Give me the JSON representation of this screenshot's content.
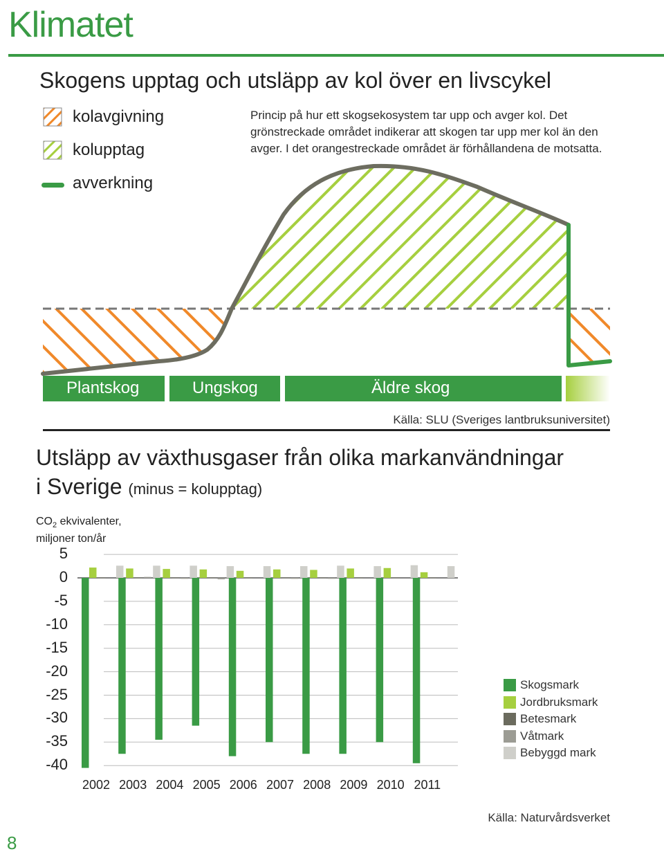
{
  "header": {
    "title": "Klimatet"
  },
  "section1": {
    "title": "Skogens upptag och utsläpp av kol över en livscykel",
    "legend": [
      {
        "label": "kolavgivning",
        "pattern": "orange-hatch"
      },
      {
        "label": "kolupptag",
        "pattern": "green-hatch"
      },
      {
        "label": "avverkning",
        "pattern": "green-line"
      }
    ],
    "description": "Princip på  hur ett skogsekosystem tar upp och avger kol. Det grönstreckade området indikerar att skogen tar upp mer kol än den avger. I det orangestreckade området är förhållandena de motsatta.",
    "phases": [
      "Plantskog",
      "Ungskog",
      "Äldre skog"
    ],
    "source": "Källa: SLU (Sveriges lantbruksuniversitet)",
    "colors": {
      "orange": "#f0892a",
      "light_green": "#a6cf3f",
      "green": "#3a9b45",
      "curve": "#6d6d60",
      "dashed": "#777777"
    }
  },
  "section2": {
    "title_main": "Utsläpp av växthusgaser från olika markanvändningar",
    "title_line2": "i Sverige",
    "title_sub": "(minus = kolupptag)",
    "ylabel_pre": "CO",
    "ylabel_sub": "2",
    "ylabel_post": " ekvivalenter,",
    "ylabel_line2": "miljoner ton/år",
    "source": "Källa: Naturvårdsverket"
  },
  "chart_data": {
    "type": "bar",
    "title": "Utsläpp av växthusgaser från olika markanvändningar i Sverige (minus = kolupptag)",
    "ylabel": "CO2 ekvivalenter, miljoner ton/år",
    "categories": [
      "2002",
      "2003",
      "2004",
      "2005",
      "2006",
      "2007",
      "2008",
      "2009",
      "2010",
      "2011"
    ],
    "ylim": [
      -40,
      5
    ],
    "yticks": [
      "5",
      "0",
      "-5",
      "-10",
      "-15",
      "-20",
      "-25",
      "-30",
      "-35",
      "-40"
    ],
    "grid": true,
    "legend_position": "right",
    "series": [
      {
        "name": "Skogsmark",
        "color": "#3a9b45",
        "values": [
          -40.5,
          -37.5,
          -34.5,
          -31.5,
          -38,
          -35,
          -37.5,
          -37.5,
          -35,
          -39.5
        ]
      },
      {
        "name": "Jordbruksmark",
        "color": "#a6cf3f",
        "values": [
          2.2,
          2.0,
          1.9,
          1.8,
          1.5,
          1.8,
          1.7,
          2.0,
          2.1,
          1.2
        ]
      },
      {
        "name": "Betesmark",
        "color": "#6b6b5e",
        "values": [
          0.1,
          0.1,
          0.1,
          0.1,
          0.1,
          0.1,
          0.1,
          0.1,
          0.1,
          0.1
        ]
      },
      {
        "name": "Våtmark",
        "color": "#9c9c94",
        "values": [
          0.0,
          0.2,
          -0.2,
          -0.3,
          0.0,
          -0.2,
          -0.2,
          0.0,
          0.0,
          0.0
        ]
      },
      {
        "name": "Bebyggd mark",
        "color": "#cfcfca",
        "values": [
          2.6,
          2.6,
          2.6,
          2.5,
          2.5,
          2.5,
          2.6,
          2.5,
          2.7,
          2.5
        ]
      }
    ]
  },
  "footer": {
    "page_number": "8"
  }
}
